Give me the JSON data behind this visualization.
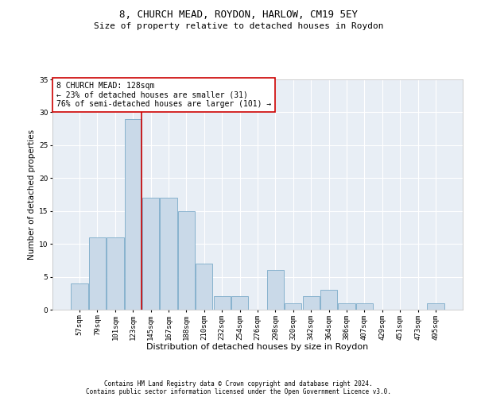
{
  "title1": "8, CHURCH MEAD, ROYDON, HARLOW, CM19 5EY",
  "title2": "Size of property relative to detached houses in Roydon",
  "xlabel": "Distribution of detached houses by size in Roydon",
  "ylabel": "Number of detached properties",
  "bar_labels": [
    "57sqm",
    "79sqm",
    "101sqm",
    "123sqm",
    "145sqm",
    "167sqm",
    "188sqm",
    "210sqm",
    "232sqm",
    "254sqm",
    "276sqm",
    "298sqm",
    "320sqm",
    "342sqm",
    "364sqm",
    "386sqm",
    "407sqm",
    "429sqm",
    "451sqm",
    "473sqm",
    "495sqm"
  ],
  "bar_values": [
    4,
    11,
    11,
    29,
    17,
    17,
    15,
    7,
    2,
    2,
    0,
    6,
    1,
    2,
    3,
    1,
    1,
    0,
    0,
    0,
    1
  ],
  "bar_color": "#c9d9e8",
  "bar_edge_color": "#7aaac8",
  "vline_x": 3.5,
  "vline_color": "#cc0000",
  "annotation_text": "8 CHURCH MEAD: 128sqm\n← 23% of detached houses are smaller (31)\n76% of semi-detached houses are larger (101) →",
  "annotation_box_color": "white",
  "annotation_box_edge": "#cc0000",
  "ylim": [
    0,
    35
  ],
  "yticks": [
    0,
    5,
    10,
    15,
    20,
    25,
    30,
    35
  ],
  "footer1": "Contains HM Land Registry data © Crown copyright and database right 2024.",
  "footer2": "Contains public sector information licensed under the Open Government Licence v3.0.",
  "plot_bg_color": "#e8eef5",
  "title1_fontsize": 9,
  "title2_fontsize": 8,
  "xlabel_fontsize": 8,
  "ylabel_fontsize": 7.5,
  "tick_fontsize": 6.5,
  "footer_fontsize": 5.5,
  "annotation_fontsize": 7
}
